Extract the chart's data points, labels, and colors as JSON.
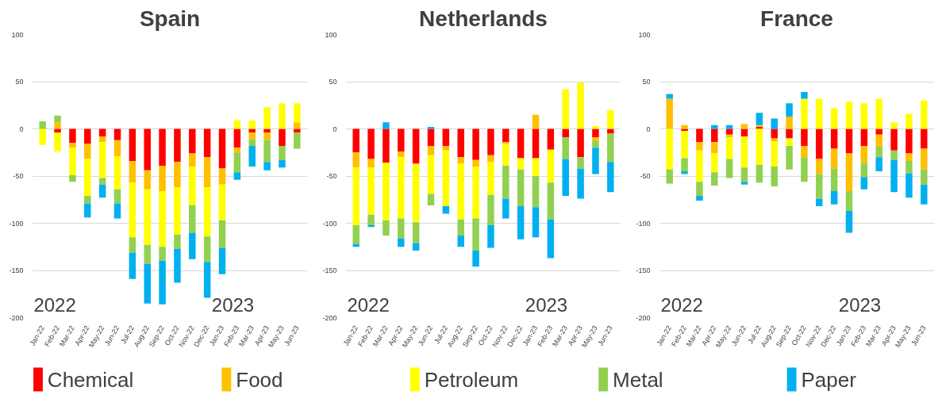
{
  "chart_data": [
    {
      "type": "bar",
      "title": "Spain",
      "stacked": true,
      "grid": "y",
      "legend": "bottom",
      "ylim": [
        -200,
        100
      ],
      "yticks": [
        -200,
        -150,
        -100,
        -50,
        0,
        50,
        100
      ],
      "annotations": [
        "2022",
        "2023"
      ],
      "categories": [
        "Jan-22",
        "Feb-22",
        "Mar-22",
        "Apr-22",
        "May-22",
        "Jun-22",
        "Jul-22",
        "Aug-22",
        "Sep-22",
        "Oct-22",
        "Nov-22",
        "Dec-22",
        "Jan-23",
        "Feb-23",
        "Mar-23",
        "Apr-23",
        "May-23",
        "Jun-23"
      ],
      "series": [
        {
          "name": "Chemical",
          "color": "#ff0000",
          "values": [
            0,
            -4,
            -15,
            -16,
            -8,
            -12,
            -34,
            -44,
            -39,
            -35,
            -26,
            -30,
            -42,
            -20,
            -4,
            -4,
            -18,
            -4
          ]
        },
        {
          "name": "Food",
          "color": "#ffc000",
          "values": [
            0,
            7,
            -5,
            -16,
            -6,
            -17,
            -23,
            -20,
            -27,
            -27,
            -14,
            -32,
            -17,
            -5,
            -7,
            -8,
            0,
            7
          ]
        },
        {
          "name": "Petroleum",
          "color": "#ffff00",
          "values": [
            -17,
            -20,
            -29,
            -39,
            -38,
            -35,
            -58,
            -59,
            -59,
            -50,
            -41,
            -52,
            -38,
            9,
            9,
            23,
            27,
            20
          ]
        },
        {
          "name": "Metal",
          "color": "#92d050",
          "values": [
            8,
            7,
            -7,
            -8,
            -7,
            -15,
            -16,
            -20,
            -15,
            -15,
            -29,
            -27,
            -29,
            -21,
            -7,
            -23,
            -15,
            -17
          ]
        },
        {
          "name": "Paper",
          "color": "#00b0f0",
          "values": [
            0,
            0,
            0,
            -15,
            -14,
            -16,
            -28,
            -42,
            -46,
            -36,
            -28,
            -38,
            -28,
            -8,
            -22,
            -9,
            -8,
            0
          ]
        }
      ]
    },
    {
      "type": "bar",
      "title": "Netherlands",
      "stacked": true,
      "grid": "y",
      "ylim": [
        -200,
        100
      ],
      "yticks": [
        -200,
        -150,
        -100,
        -50,
        0,
        50,
        100
      ],
      "annotations": [
        "2022",
        "2023"
      ],
      "categories": [
        "Jan-22",
        "Feb-22",
        "Mar-22",
        "Apr-22",
        "May-22",
        "Jun-22",
        "Jul-22",
        "Aug-22",
        "Sep-22",
        "Oct-22",
        "Nov-22",
        "Dec-22",
        "Jan-23",
        "Feb-23",
        "Mar-23",
        "Apr-23",
        "May-23",
        "Jun-23"
      ],
      "series": [
        {
          "color": "#ff0000",
          "values": [
            -25,
            -32,
            -36,
            -24,
            -37,
            -18,
            -18,
            -30,
            -33,
            -28,
            -14,
            -31,
            -31,
            -22,
            -9,
            -30,
            -9,
            -5
          ]
        },
        {
          "color": "#ffc000",
          "values": [
            -16,
            -9,
            0,
            -6,
            0,
            -10,
            -5,
            -7,
            -7,
            -7,
            -2,
            0,
            15,
            0,
            0,
            0,
            -4,
            0
          ]
        },
        {
          "color": "#ffff00",
          "values": [
            -61,
            -50,
            -61,
            -65,
            -62,
            -41,
            -59,
            -59,
            -55,
            -35,
            -23,
            -12,
            -19,
            -35,
            42,
            49,
            3,
            20
          ]
        },
        {
          "color": "#92d050",
          "values": [
            -20,
            -11,
            -16,
            -21,
            -22,
            -12,
            0,
            -17,
            -34,
            -32,
            -35,
            -39,
            -33,
            -39,
            -23,
            -12,
            -7,
            -30
          ]
        },
        {
          "color": "#00b0f0",
          "values": [
            -3,
            -2,
            7,
            -9,
            -8,
            2,
            -8,
            -12,
            -17,
            -24,
            -21,
            -35,
            -32,
            -41,
            -39,
            -32,
            -28,
            -32
          ]
        }
      ]
    },
    {
      "type": "bar",
      "title": "France",
      "stacked": true,
      "grid": "y",
      "ylim": [
        -200,
        100
      ],
      "yticks": [
        -200,
        -150,
        -100,
        -50,
        0,
        50,
        100
      ],
      "annotations": [
        "2022",
        "2023"
      ],
      "categories": [
        "Jan-22",
        "Feb-22",
        "Mar-22",
        "Apr-22",
        "May-22",
        "Jun-22",
        "Jul-22",
        "Aug-22",
        "Sep-22",
        "Oct-22",
        "Nov-22",
        "Dec-22",
        "Jan-23",
        "Feb-23",
        "Mar-23",
        "Apr-23",
        "May-23",
        "Jun-23"
      ],
      "series": [
        {
          "color": "#ff0000",
          "values": [
            0,
            -2,
            -14,
            -14,
            -6,
            -8,
            2,
            -10,
            -10,
            -18,
            -32,
            -21,
            -26,
            -18,
            -6,
            -23,
            -26,
            -21
          ]
        },
        {
          "color": "#ffc000",
          "values": [
            32,
            4,
            -9,
            -12,
            -3,
            5,
            2,
            -3,
            13,
            -12,
            -16,
            -21,
            -40,
            -18,
            -13,
            0,
            -8,
            -22
          ]
        },
        {
          "color": "#ffff00",
          "values": [
            -43,
            -29,
            -33,
            -20,
            -23,
            -33,
            -38,
            -27,
            -8,
            32,
            32,
            22,
            29,
            27,
            32,
            7,
            16,
            30
          ]
        },
        {
          "color": "#92d050",
          "values": [
            -15,
            -14,
            -15,
            -14,
            -20,
            -15,
            -19,
            -21,
            -25,
            -26,
            -26,
            -24,
            -21,
            -15,
            -11,
            -10,
            -13,
            -16
          ]
        },
        {
          "color": "#00b0f0",
          "values": [
            5,
            -3,
            -5,
            4,
            4,
            -3,
            13,
            11,
            14,
            7,
            -8,
            -14,
            -23,
            -13,
            -15,
            -34,
            -26,
            -21
          ]
        }
      ]
    }
  ]
}
